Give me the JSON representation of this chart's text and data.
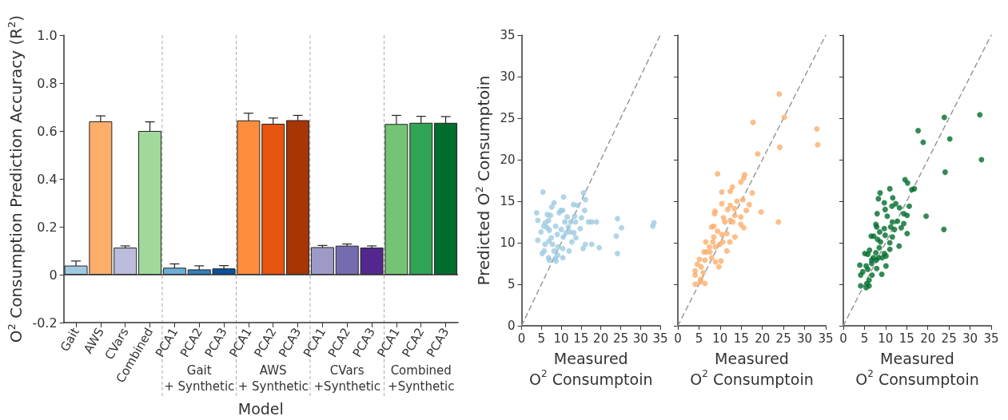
{
  "chart_data": [
    {
      "type": "bar",
      "xlabel": "Model",
      "ylabel": "O$^{2}$ Consumption Prediction Accuracy (R$^{2}$)",
      "categories": [
        "Gait",
        "AWS",
        "CVars",
        "Combined",
        "PCA1",
        "PCA2",
        "PCA3",
        "PCA1",
        "PCA2",
        "PCA3",
        "PCA1",
        "PCA2",
        "PCA3",
        "PCA1",
        "PCA2",
        "PCA3"
      ],
      "values": [
        0.038,
        0.64,
        0.113,
        0.6,
        0.029,
        0.022,
        0.026,
        0.644,
        0.63,
        0.645,
        0.115,
        0.121,
        0.113,
        0.629,
        0.634,
        0.634
      ],
      "errors": [
        0.019,
        0.023,
        0.007,
        0.038,
        0.016,
        0.015,
        0.012,
        0.03,
        0.024,
        0.02,
        0.007,
        0.007,
        0.007,
        0.036,
        0.027,
        0.026
      ],
      "colors": [
        "#9ecae1",
        "#fdae6b",
        "#bcbddc",
        "#a1d99b",
        "#6baed6",
        "#3182bd",
        "#08519c",
        "#fd8d3c",
        "#e6550d",
        "#a63603",
        "#9e9ac8",
        "#756bb1",
        "#54278f",
        "#74c476",
        "#31a354",
        "#006d2c"
      ],
      "ylim": [
        -0.2,
        1.0
      ],
      "yticks": [
        {
          "value": -0.2,
          "label": "-0.2"
        },
        0,
        0.2,
        0.4,
        0.6,
        0.8,
        {
          "value": 1.0,
          "label": "1.0"
        }
      ],
      "ref_lines": [
        {
          "axis": "y",
          "value": 0,
          "color": "#333333"
        }
      ],
      "annotations": [
        "Gait\n+ Synthetic",
        "AWS\n+ Synthetic",
        "CVars\n+Synthetic",
        "Combined\n+Synthetic"
      ],
      "grid": false
    },
    {
      "type": "scatter",
      "xlabel": "Measured\nO$^{2}$ Consumptoin",
      "ylabel": "Predicted O$^{2}$ Consumptoin",
      "marker": "circle",
      "grid": false,
      "xlim": [
        0,
        35
      ],
      "xticks": [
        0,
        5,
        10,
        15,
        20,
        25,
        30,
        35
      ],
      "ylim": [
        0,
        35
      ],
      "yticks": [
        0,
        5,
        10,
        15,
        20,
        25,
        30,
        35
      ],
      "series": [
        {
          "color": "#9ecae1",
          "x": [
            5.4,
            3.8,
            4.1,
            4.1,
            5.2,
            5.7,
            4.9,
            5.6,
            6.0,
            6.5,
            6.8,
            6.5,
            7.0,
            6.9,
            5.9,
            6.8,
            7.0,
            7.3,
            7.6,
            8.2,
            7.5,
            7.8,
            8.2,
            8.5,
            8.7,
            8.6,
            9.0,
            9.2,
            9.1,
            9.5,
            9.9,
            10.4,
            10.6,
            10.0,
            10.5,
            10.4,
            10.4,
            10.9,
            11.2,
            11.5,
            11.8,
            12.2,
            12.0,
            12.4,
            12.7,
            13.1,
            13.4,
            13.6,
            13.7,
            13.2,
            14.1,
            14.8,
            15.1,
            15.6,
            16.1,
            15.9,
            15.5,
            16.1,
            16.9,
            17.7,
            18.9,
            17.7,
            19.6,
            23.9,
            24.2,
            24.2,
            25.2,
            33.1,
            33.4
          ],
          "values": [
            16.1,
            13.6,
            12.7,
            10.3,
            8.7,
            9.0,
            11.3,
            12.0,
            12.4,
            13.4,
            12.7,
            11.8,
            11.5,
            10.2,
            9.8,
            8.2,
            7.9,
            13.3,
            14.3,
            14.8,
            10.6,
            9.8,
            9.0,
            8.1,
            7.8,
            12.0,
            11.0,
            9.5,
            8.5,
            13.6,
            13.9,
            13.9,
            15.5,
            11.6,
            10.7,
            9.3,
            8.2,
            12.5,
            11.2,
            13.1,
            11.9,
            11.3,
            9.0,
            12.5,
            10.1,
            14.6,
            13.2,
            12.5,
            10.6,
            11.2,
            14.5,
            11.7,
            13.0,
            16.0,
            15.2,
            13.9,
            9.3,
            9.8,
            12.5,
            12.5,
            12.5,
            9.8,
            9.4,
            10.8,
            12.9,
            8.7,
            11.8,
            12.0,
            12.4
          ]
        },
        {
          "type": "line",
          "color": "#999999",
          "line_style": "dashed",
          "marker": "none",
          "x": [
            0,
            35
          ],
          "values": [
            0,
            35
          ]
        }
      ]
    },
    {
      "type": "scatter",
      "xlabel": "Measured\nO$^{2}$ Consumptoin",
      "marker": "circle",
      "grid": false,
      "tick_labels": "x",
      "xlim": [
        0,
        35
      ],
      "xticks": [
        0,
        5,
        10,
        15,
        20,
        25,
        30,
        35
      ],
      "ylim": [
        0,
        35
      ],
      "yticks": [
        0,
        5,
        10,
        15,
        20,
        25,
        30,
        35
      ],
      "series": [
        {
          "color": "#fdae6b",
          "x": [
            24.0,
            25.2,
            17.8,
            24.1,
            18.9,
            9.4,
            15.8,
            15.6,
            14.9,
            12.9,
            12.4,
            10.4,
            17.6,
            14.0,
            15.4,
            16.9,
            12.4,
            10.4,
            8.8,
            8.7,
            11.8,
            13.4,
            13.5,
            14.9,
            16.2,
            19.7,
            10.8,
            11.1,
            12.4,
            13.0,
            8.5,
            8.0,
            9.4,
            11.6,
            10.4,
            13.5,
            14.9,
            15.6,
            23.8,
            8.5,
            8.3,
            10.6,
            9.9,
            8.9,
            6.6,
            7.5,
            6.2,
            6.8,
            7.6,
            11.6,
            12.3,
            5.1,
            6.4,
            8.0,
            8.9,
            10.2,
            9.7,
            4.6,
            5.5,
            4.1,
            6.0,
            4.1,
            5.4,
            4.1,
            6.4,
            5.3,
            32.9,
            33.1
          ],
          "values": [
            27.9,
            25.1,
            24.5,
            21.5,
            20.7,
            18.3,
            18.2,
            17.8,
            17.3,
            16.7,
            16.2,
            16.1,
            16.0,
            15.0,
            15.2,
            14.6,
            14.5,
            14.7,
            13.8,
            13.5,
            14.0,
            14.1,
            13.3,
            13.1,
            13.9,
            13.7,
            13.0,
            12.5,
            12.7,
            12.5,
            12.0,
            11.9,
            11.4,
            11.1,
            11.0,
            10.7,
            12.2,
            11.8,
            12.5,
            10.7,
            10.1,
            10.1,
            9.8,
            9.5,
            10.1,
            9.5,
            8.9,
            8.9,
            8.9,
            9.0,
            10.1,
            8.0,
            7.9,
            8.2,
            7.7,
            7.8,
            7.1,
            7.4,
            7.1,
            6.6,
            6.4,
            6.1,
            5.6,
            5.0,
            5.1,
            5.3,
            23.7,
            21.8
          ]
        },
        {
          "type": "line",
          "color": "#999999",
          "line_style": "dashed",
          "marker": "none",
          "x": [
            0,
            35
          ],
          "values": [
            0,
            35
          ]
        }
      ]
    },
    {
      "type": "scatter",
      "xlabel": "Measured\nO$^{2}$ Consumptoin",
      "marker": "circle",
      "grid": false,
      "tick_labels": "x",
      "xlim": [
        0,
        35
      ],
      "xticks": [
        0,
        5,
        10,
        15,
        20,
        25,
        30,
        35
      ],
      "ylim": [
        0,
        35
      ],
      "yticks": [
        0,
        5,
        10,
        15,
        20,
        25,
        30,
        35
      ],
      "series": [
        {
          "color": "#006d2c",
          "x": [
            32.3,
            32.7,
            23.9,
            25.2,
            17.7,
            18.9,
            24.1,
            23.8,
            19.6,
            14.6,
            15.2,
            16.8,
            16.2,
            8.7,
            11.0,
            8.3,
            11.7,
            9.7,
            12.4,
            11.5,
            13.3,
            15.6,
            9.9,
            10.4,
            8.0,
            14.3,
            15.1,
            11.6,
            12.8,
            14.3,
            7.7,
            7.9,
            9.7,
            11.2,
            12.1,
            13.7,
            8.6,
            6.6,
            7.2,
            15.1,
            8.1,
            11.6,
            9.9,
            8.8,
            11.0,
            13.2,
            8.5,
            11.0,
            6.2,
            7.7,
            5.1,
            5.8,
            9.7,
            10.1,
            7.1,
            8.3,
            9.2,
            6.7,
            7.8,
            6.7,
            5.4,
            3.9,
            7.9,
            10.1,
            5.8,
            4.6,
            4.1,
            9.1,
            6.8,
            6.1,
            5.6,
            6.1,
            4.1,
            5.4
          ],
          "values": [
            25.4,
            20.0,
            25.1,
            22.5,
            23.5,
            22.1,
            18.5,
            11.6,
            13.2,
            17.6,
            17.2,
            16.5,
            16.4,
            16.0,
            16.5,
            15.3,
            15.4,
            14.8,
            14.7,
            14.4,
            14.2,
            14.4,
            14.0,
            13.2,
            13.5,
            13.5,
            13.3,
            12.5,
            12.6,
            12.3,
            12.2,
            11.9,
            11.7,
            11.9,
            11.6,
            11.8,
            11.3,
            10.8,
            10.8,
            11.1,
            10.4,
            10.7,
            10.9,
            10.1,
            10.0,
            9.6,
            9.4,
            9.2,
            9.1,
            8.8,
            8.7,
            8.6,
            8.7,
            8.4,
            8.2,
            8.2,
            8.2,
            7.9,
            7.9,
            7.5,
            7.2,
            7.3,
            6.9,
            7.2,
            6.8,
            6.5,
            6.1,
            6.2,
            6.1,
            5.5,
            5.1,
            4.8,
            4.8,
            4.6
          ]
        },
        {
          "type": "line",
          "color": "#999999",
          "line_style": "dashed",
          "marker": "none",
          "x": [
            0,
            35
          ],
          "values": [
            0,
            35
          ]
        }
      ]
    }
  ]
}
